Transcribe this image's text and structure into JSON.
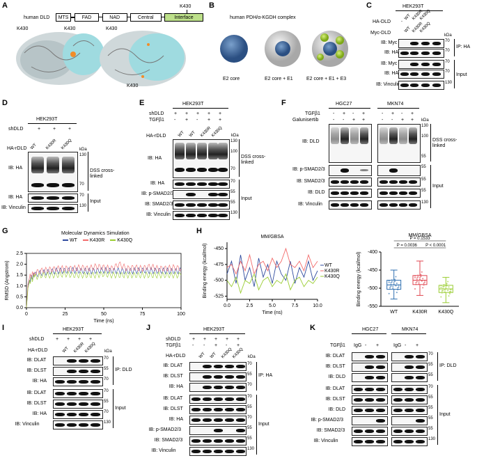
{
  "panels": {
    "A": {
      "letter": "A",
      "protein": "human DLD",
      "domains": [
        "MTS",
        "FAD",
        "NAD",
        "Central",
        "Interface"
      ],
      "site": "K430",
      "site_labels": [
        "K430",
        "K430",
        "K430",
        "K430"
      ]
    },
    "B": {
      "letter": "B",
      "title": "human PDH/α-KGDH complex",
      "captions": [
        "E2 core",
        "E2 core + E1",
        "E2 core + E1 + E3"
      ]
    },
    "C": {
      "letter": "C",
      "cell": "HEK293T",
      "row_labels": [
        "HA-DLD",
        "Myc-DLD"
      ],
      "cols": [
        "WT",
        "K430R",
        "K430Q",
        "WT",
        "K430R",
        "K430Q"
      ],
      "signs_ha": [
        "-",
        "",
        "",
        "",
        "",
        ""
      ],
      "blots": [
        "IB: Myc",
        "IB: HA",
        "IB: Myc",
        "IB: HA",
        "IB: Vinculin"
      ],
      "kda": [
        "kDa",
        "70",
        "70",
        "70",
        "70",
        "130"
      ],
      "groups": [
        "IP: HA",
        "Input"
      ]
    },
    "D": {
      "letter": "D",
      "cell": "HEK293T",
      "shdld": "shDLD",
      "signs": [
        "+",
        "+",
        "+"
      ],
      "rdld": "HA-rDLD",
      "cols": [
        "WT",
        "K430R",
        "K430Q"
      ],
      "blots": [
        "IB: HA",
        "IB: HA",
        "IB: Vinculin"
      ],
      "kda": [
        "kDa",
        "130",
        "70",
        "70",
        "130"
      ],
      "groups": [
        "DSS cross-linked",
        "Input"
      ]
    },
    "E": {
      "letter": "E",
      "cell": "HEK293T",
      "rows": [
        "shDLD",
        "TGFβ1"
      ],
      "sh_signs": [
        "+",
        "+",
        "+",
        "+",
        "+"
      ],
      "tgf_signs": [
        "-",
        "+",
        "-",
        "+",
        "+"
      ],
      "rdld": "HA-rDLD",
      "cols": [
        "WT",
        "WT",
        "K430R",
        "K430Q"
      ],
      "blots": [
        "IB: HA",
        "IB: HA",
        "IB: p-SMAD2/3",
        "IB: SMAD2/3",
        "IB: Vinculin"
      ],
      "kda": [
        "kDa",
        "130",
        "100",
        "70",
        "70",
        "55",
        "55",
        "130"
      ],
      "groups": [
        "DSS cross-linked",
        "Input"
      ]
    },
    "F": {
      "letter": "F",
      "cells": [
        "HGC27",
        "MKN74"
      ],
      "rows": [
        "TGFβ1",
        "Galunisertib"
      ],
      "tgf_signs": [
        "-",
        "+",
        "-",
        "+",
        "-",
        "+",
        "-",
        "+"
      ],
      "gal_signs": [
        "-",
        "-",
        "+",
        "+",
        "-",
        "-",
        "+",
        "+"
      ],
      "blots": [
        "IB: DLD",
        "IB: p-SMAD2/3",
        "IB: SMAD2/3",
        "IB: DLD",
        "IB: Vinculin"
      ],
      "kda": [
        "kDa",
        "130",
        "100",
        "55",
        "55",
        "55",
        "55",
        "130"
      ],
      "groups": [
        "DSS cross-linked",
        "Input"
      ]
    },
    "G": {
      "letter": "G",
      "title": "Molecular Dynamics Simulation"
    },
    "H": {
      "letter": "H",
      "title": "MM/GBSA"
    },
    "I": {
      "letter": "I",
      "cell": "HEK293T",
      "shdld": "shDLD",
      "signs": [
        "+",
        "+",
        "+",
        "+"
      ],
      "rdld": "HA-rDLD",
      "cols": [
        "WT",
        "K430R",
        "K430Q"
      ],
      "blots": [
        "IB: DLAT",
        "IB: DLST",
        "IB: HA",
        "IB: DLAT",
        "IB: DLST",
        "IB: HA",
        "IB: Vinculin"
      ],
      "kda": [
        "kDa",
        "70",
        "55",
        "70",
        "70",
        "55",
        "70",
        "130"
      ],
      "groups": [
        "IP: DLD",
        "Input"
      ]
    },
    "J": {
      "letter": "J",
      "cell": "HEK293T",
      "rows": [
        "shDLD",
        "TGFβ1"
      ],
      "sh_signs": [
        "+",
        "+",
        "+",
        "+",
        "+"
      ],
      "tgf_signs": [
        "-",
        "-",
        "+",
        "-",
        "+"
      ],
      "rdld": "HA-rDLD",
      "cols": [
        "WT",
        "WT",
        "K430Q",
        "K430Q"
      ],
      "blots": [
        "IB: DLAT",
        "IB: DLST",
        "IB: HA",
        "IB: DLAT",
        "IB: DLST",
        "IB: HA",
        "IB: p-SMAD2/3",
        "IB: SMAD2/3",
        "IB: Vinculin"
      ],
      "kda": [
        "kDa",
        "70",
        "55",
        "70",
        "70",
        "55",
        "70",
        "55",
        "55",
        "130"
      ],
      "groups": [
        "IP: HA",
        "Input"
      ]
    },
    "K": {
      "letter": "K",
      "cells": [
        "HGC27",
        "MKN74"
      ],
      "row": "TGFβ1",
      "cols": [
        "IgG",
        "-",
        "+",
        "IgG",
        "-",
        "+"
      ],
      "blots": [
        "IB: DLAT",
        "IB: DLST",
        "IB: DLD",
        "IB: DLAT",
        "IB: DLST",
        "IB: DLD",
        "IB: p-SMAD2/3",
        "IB: SMAD2/3",
        "IB: Vinculin"
      ],
      "kda": [
        "70",
        "55",
        "55",
        "70",
        "55",
        "55",
        "55",
        "55",
        "130"
      ],
      "groups": [
        "IP: DLD",
        "Input"
      ]
    }
  },
  "chart_data": [
    {
      "type": "line",
      "title": "Molecular Dynamics Simulation",
      "xlabel": "Time (ns)",
      "ylabel": "RMSD (Angstrom)",
      "xlim": [
        0,
        100
      ],
      "ylim": [
        0,
        2.5
      ],
      "xticks": [
        0,
        25,
        50,
        75,
        100
      ],
      "yticks": [
        0.0,
        0.5,
        1.0,
        1.5,
        2.0,
        2.5
      ],
      "legend_position": "top",
      "series": [
        {
          "name": "WT",
          "color": "#2e4a9e",
          "x": [
            0,
            1,
            2,
            5,
            10,
            15,
            20,
            25,
            30,
            35,
            40,
            45,
            50,
            55,
            60,
            65,
            70,
            75,
            80,
            85,
            90,
            95,
            100
          ],
          "y": [
            0,
            1.0,
            1.3,
            1.5,
            1.6,
            1.65,
            1.7,
            1.7,
            1.72,
            1.7,
            1.68,
            1.7,
            1.72,
            1.7,
            1.7,
            1.68,
            1.7,
            1.72,
            1.7,
            1.7,
            1.7,
            1.68,
            1.7
          ]
        },
        {
          "name": "K430R",
          "color": "#f26b6b",
          "x": [
            0,
            1,
            2,
            5,
            10,
            15,
            20,
            25,
            30,
            35,
            40,
            45,
            50,
            55,
            60,
            65,
            70,
            75,
            80,
            85,
            90,
            95,
            100
          ],
          "y": [
            0,
            1.1,
            1.4,
            1.6,
            1.7,
            1.75,
            1.8,
            1.8,
            1.8,
            1.85,
            1.8,
            1.9,
            1.85,
            1.8,
            2.0,
            1.8,
            1.85,
            1.8,
            1.9,
            1.8,
            1.8,
            1.85,
            1.8
          ]
        },
        {
          "name": "K430Q",
          "color": "#9acd32",
          "x": [
            0,
            1,
            2,
            5,
            10,
            15,
            20,
            25,
            30,
            35,
            40,
            45,
            50,
            55,
            60,
            65,
            70,
            75,
            80,
            85,
            90,
            95,
            100
          ],
          "y": [
            0,
            0.9,
            1.2,
            1.4,
            1.5,
            1.5,
            1.5,
            1.55,
            1.5,
            1.5,
            1.5,
            1.5,
            1.55,
            1.5,
            1.5,
            1.5,
            1.5,
            1.5,
            1.5,
            1.5,
            1.5,
            1.5,
            1.5
          ]
        }
      ]
    },
    {
      "type": "line",
      "title": "MM/GBSA",
      "xlabel": "Time (ns)",
      "ylabel": "Binding energy (kcal/mol)",
      "xlim": [
        0,
        10
      ],
      "ylim": [
        -530,
        -440
      ],
      "xticks": [
        0.0,
        2.5,
        5.0,
        7.5,
        10.0
      ],
      "yticks": [
        -450,
        -475,
        -500,
        -525
      ],
      "legend_position": "right",
      "series": [
        {
          "name": "WT",
          "color": "#2e4a9e",
          "x": [
            0,
            0.5,
            1,
            1.5,
            2,
            2.5,
            3,
            3.5,
            4,
            4.5,
            5,
            5.5,
            6,
            6.5,
            7,
            7.5,
            8,
            8.5,
            9,
            9.5,
            10
          ],
          "y": [
            -490,
            -470,
            -505,
            -460,
            -500,
            -480,
            -510,
            -465,
            -495,
            -475,
            -505,
            -470,
            -490,
            -500,
            -470,
            -505,
            -480,
            -495,
            -470,
            -500,
            -485
          ]
        },
        {
          "name": "K430R",
          "color": "#f26b6b",
          "x": [
            0,
            0.5,
            1,
            1.5,
            2,
            2.5,
            3,
            3.5,
            4,
            4.5,
            5,
            5.5,
            6,
            6.5,
            7,
            7.5,
            8,
            8.5,
            9,
            9.5,
            10
          ],
          "y": [
            -480,
            -475,
            -490,
            -470,
            -485,
            -460,
            -490,
            -475,
            -470,
            -485,
            -465,
            -480,
            -470,
            -450,
            -475,
            -480,
            -470,
            -485,
            -460,
            -480,
            -470
          ]
        },
        {
          "name": "K430Q",
          "color": "#9acd32",
          "x": [
            0,
            0.5,
            1,
            1.5,
            2,
            2.5,
            3,
            3.5,
            4,
            4.5,
            5,
            5.5,
            6,
            6.5,
            7,
            7.5,
            8,
            8.5,
            9,
            9.5,
            10
          ],
          "y": [
            -500,
            -510,
            -495,
            -520,
            -500,
            -505,
            -490,
            -515,
            -500,
            -495,
            -510,
            -500,
            -505,
            -490,
            -515,
            -500,
            -495,
            -510,
            -500,
            -505,
            -495
          ]
        }
      ]
    },
    {
      "type": "box",
      "title": "MM/GBSA",
      "ylabel": "Binding energy (kcal/mol)",
      "categories": [
        "WT",
        "K430R",
        "K430Q"
      ],
      "ylim": [
        -550,
        -400
      ],
      "yticks": [
        -400,
        -450,
        -500,
        -550
      ],
      "colors": [
        "#2e6fb0",
        "#e0454f",
        "#9acd32"
      ],
      "medians": [
        -491,
        -478,
        -502
      ],
      "q1": [
        -503,
        -490,
        -512
      ],
      "q3": [
        -478,
        -465,
        -492
      ],
      "whisker_low": [
        -530,
        -520,
        -540
      ],
      "whisker_high": [
        -450,
        -425,
        -470
      ],
      "annotations": [
        "P = 0.1533",
        "P = 0.0036",
        "P < 0.0001"
      ]
    }
  ]
}
